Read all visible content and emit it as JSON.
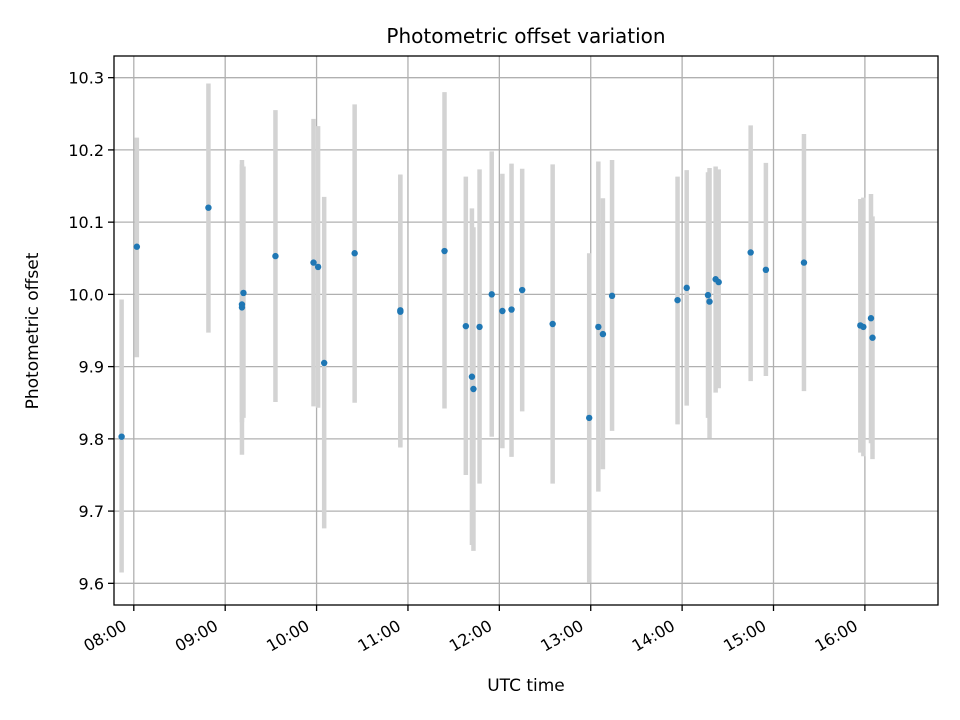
{
  "chart_data": {
    "type": "scatter",
    "title": "Photometric offset variation",
    "xlabel": "UTC time",
    "ylabel": "Photometric offset",
    "xlim": [
      "07:47",
      "16:48"
    ],
    "ylim": [
      9.57,
      10.33
    ],
    "x_ticks": [
      "08:00",
      "09:00",
      "10:00",
      "11:00",
      "12:00",
      "13:00",
      "14:00",
      "15:00",
      "16:00"
    ],
    "y_ticks": [
      "9.6",
      "9.7",
      "9.8",
      "9.9",
      "10.0",
      "10.1",
      "10.2",
      "10.3"
    ],
    "grid": true,
    "error_bars": true,
    "points": [
      {
        "x": "07:52",
        "y": 9.803,
        "err_low": 9.615,
        "err_high": 9.993
      },
      {
        "x": "08:02",
        "y": 10.066,
        "err_low": 9.913,
        "err_high": 10.217
      },
      {
        "x": "08:49",
        "y": 10.12,
        "err_low": 9.947,
        "err_high": 10.292
      },
      {
        "x": "09:11",
        "y": 9.986,
        "err_low": 9.778,
        "err_high": 10.186
      },
      {
        "x": "09:11",
        "y": 9.982,
        "err_low": 9.823,
        "err_high": 10.18
      },
      {
        "x": "09:12",
        "y": 10.002,
        "err_low": 9.829,
        "err_high": 10.177
      },
      {
        "x": "09:33",
        "y": 10.053,
        "err_low": 9.851,
        "err_high": 10.255
      },
      {
        "x": "09:58",
        "y": 10.044,
        "err_low": 9.845,
        "err_high": 10.243
      },
      {
        "x": "10:01",
        "y": 10.038,
        "err_low": 9.843,
        "err_high": 10.233
      },
      {
        "x": "10:05",
        "y": 9.905,
        "err_low": 9.676,
        "err_high": 10.135
      },
      {
        "x": "10:25",
        "y": 10.057,
        "err_low": 9.85,
        "err_high": 10.263
      },
      {
        "x": "10:55",
        "y": 9.976,
        "err_low": 9.788,
        "err_high": 10.166
      },
      {
        "x": "10:55",
        "y": 9.978,
        "err_low": 9.79,
        "err_high": 10.165
      },
      {
        "x": "11:24",
        "y": 10.06,
        "err_low": 9.842,
        "err_high": 10.28
      },
      {
        "x": "11:38",
        "y": 9.956,
        "err_low": 9.75,
        "err_high": 10.163
      },
      {
        "x": "11:42",
        "y": 9.886,
        "err_low": 9.653,
        "err_high": 10.119
      },
      {
        "x": "11:43",
        "y": 9.869,
        "err_low": 9.645,
        "err_high": 10.093
      },
      {
        "x": "11:47",
        "y": 9.955,
        "err_low": 9.738,
        "err_high": 10.173
      },
      {
        "x": "11:55",
        "y": 10.0,
        "err_low": 9.803,
        "err_high": 10.198
      },
      {
        "x": "12:02",
        "y": 9.977,
        "err_low": 9.787,
        "err_high": 10.167
      },
      {
        "x": "12:08",
        "y": 9.979,
        "err_low": 9.775,
        "err_high": 10.181
      },
      {
        "x": "12:15",
        "y": 10.006,
        "err_low": 9.838,
        "err_high": 10.174
      },
      {
        "x": "12:35",
        "y": 9.959,
        "err_low": 9.738,
        "err_high": 10.18
      },
      {
        "x": "12:59",
        "y": 9.829,
        "err_low": 9.601,
        "err_high": 10.057
      },
      {
        "x": "13:05",
        "y": 9.955,
        "err_low": 9.727,
        "err_high": 10.184
      },
      {
        "x": "13:08",
        "y": 9.945,
        "err_low": 9.758,
        "err_high": 10.133
      },
      {
        "x": "13:14",
        "y": 9.998,
        "err_low": 9.811,
        "err_high": 10.186
      },
      {
        "x": "13:57",
        "y": 9.992,
        "err_low": 9.82,
        "err_high": 10.163
      },
      {
        "x": "14:03",
        "y": 10.009,
        "err_low": 9.846,
        "err_high": 10.172
      },
      {
        "x": "14:17",
        "y": 9.999,
        "err_low": 9.829,
        "err_high": 10.169
      },
      {
        "x": "14:18",
        "y": 9.99,
        "err_low": 9.801,
        "err_high": 10.175
      },
      {
        "x": "14:22",
        "y": 10.021,
        "err_low": 9.864,
        "err_high": 10.177
      },
      {
        "x": "14:24",
        "y": 10.017,
        "err_low": 9.87,
        "err_high": 10.173
      },
      {
        "x": "14:45",
        "y": 10.058,
        "err_low": 9.88,
        "err_high": 10.234
      },
      {
        "x": "14:55",
        "y": 10.034,
        "err_low": 9.887,
        "err_high": 10.182
      },
      {
        "x": "15:20",
        "y": 10.044,
        "err_low": 9.866,
        "err_high": 10.222
      },
      {
        "x": "15:57",
        "y": 9.957,
        "err_low": 9.781,
        "err_high": 10.132
      },
      {
        "x": "15:59",
        "y": 9.955,
        "err_low": 9.776,
        "err_high": 10.134
      },
      {
        "x": "16:04",
        "y": 9.967,
        "err_low": 9.794,
        "err_high": 10.139
      },
      {
        "x": "16:05",
        "y": 9.94,
        "err_low": 9.772,
        "err_high": 10.108
      }
    ]
  }
}
